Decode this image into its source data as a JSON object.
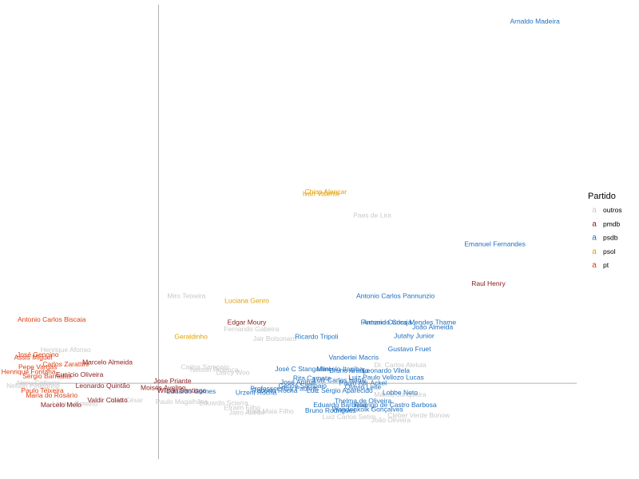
{
  "chart_data": {
    "type": "scatter",
    "title": "",
    "xlabel": "",
    "ylabel": "",
    "xlim": [
      -1.5,
      4.5
    ],
    "ylim": [
      -0.8,
      4.0
    ],
    "grid": false,
    "legend_position": "right",
    "legend": {
      "title": "Partido",
      "entries": [
        {
          "key": "a",
          "label": "outros",
          "color": "#c8c8c8"
        },
        {
          "key": "a",
          "label": "pmdb",
          "color": "#8b1a1a"
        },
        {
          "key": "a",
          "label": "psdb",
          "color": "#1f6fbf"
        },
        {
          "key": "a",
          "label": "psol",
          "color": "#e0a000"
        },
        {
          "key": "a",
          "label": "pt",
          "color": "#e03c10"
        }
      ]
    },
    "series": [
      {
        "party": "psdb",
        "points": [
          {
            "x": 4.05,
            "y": 3.8,
            "label": "Arnaldo Madeira"
          },
          {
            "x": 3.62,
            "y": 1.45,
            "label": "Emanuel Fernandes"
          },
          {
            "x": 2.55,
            "y": 0.9,
            "label": "Antonio Carlos Pannunzio"
          },
          {
            "x": 2.7,
            "y": 0.62,
            "label": "Antonio Carlos Mendes Thame"
          },
          {
            "x": 2.45,
            "y": 0.62,
            "label": "Fernando Coruja"
          },
          {
            "x": 2.95,
            "y": 0.57,
            "label": "João Almeida"
          },
          {
            "x": 2.75,
            "y": 0.48,
            "label": "Jutahy Junior"
          },
          {
            "x": 1.7,
            "y": 0.47,
            "label": "Ricardo Tripoli"
          },
          {
            "x": 2.7,
            "y": 0.34,
            "label": "Gustavo Fruet"
          },
          {
            "x": 2.1,
            "y": 0.25,
            "label": "Vanderlei Macris"
          },
          {
            "x": 1.55,
            "y": 0.13,
            "label": "José C Stangarlini"
          },
          {
            "x": 1.95,
            "y": 0.13,
            "label": "Marcelo Itagiba"
          },
          {
            "x": 2.05,
            "y": 0.11,
            "label": "Bruno Araújo"
          },
          {
            "x": 2.45,
            "y": 0.11,
            "label": "Leonardo Vilela"
          },
          {
            "x": 1.65,
            "y": 0.03,
            "label": "Rita Camata"
          },
          {
            "x": 1.95,
            "y": 0.01,
            "label": "Luiz Carlos Hauly"
          },
          {
            "x": 2.45,
            "y": 0.04,
            "label": "Luiz Paulo Vellozo Lucas"
          },
          {
            "x": 1.5,
            "y": -0.01,
            "label": "José Aníbal"
          },
          {
            "x": 2.2,
            "y": -0.02,
            "label": "Paulo Abi-Ackel"
          },
          {
            "x": 1.55,
            "y": -0.05,
            "label": "Carlos Sampaio"
          },
          {
            "x": 2.2,
            "y": -0.06,
            "label": "Otavio Leite"
          },
          {
            "x": 1.35,
            "y": -0.08,
            "label": "Professor Ruy Pauletti"
          },
          {
            "x": 1.95,
            "y": -0.1,
            "label": "Luiz Sérgio Aparecido"
          },
          {
            "x": 2.6,
            "y": -0.12,
            "label": "Lobbe Neto"
          },
          {
            "x": 1.25,
            "y": -0.1,
            "label": "Roberto Rocha"
          },
          {
            "x": 1.05,
            "y": -0.12,
            "label": "Urzeni Rocha"
          },
          {
            "x": 2.2,
            "y": -0.21,
            "label": "Thelma de Oliveira"
          },
          {
            "x": 2.55,
            "y": -0.25,
            "label": "Rodrigo de Castro Barbosa"
          },
          {
            "x": 1.95,
            "y": -0.25,
            "label": "Eduardo Barbosa"
          },
          {
            "x": 2.25,
            "y": -0.3,
            "label": "Wandenkolk Gonçalves"
          },
          {
            "x": 1.85,
            "y": -0.31,
            "label": "Bruno Rodrigues"
          },
          {
            "x": 0.35,
            "y": -0.11,
            "label": "Eduardo Gomes"
          }
        ]
      },
      {
        "party": "pmdb",
        "points": [
          {
            "x": 3.55,
            "y": 1.03,
            "label": "Raul Henry"
          },
          {
            "x": 0.95,
            "y": 0.62,
            "label": "Edgar Moury"
          },
          {
            "x": -0.55,
            "y": 0.2,
            "label": "Marcelo Almeida"
          },
          {
            "x": 0.25,
            "y": -0.1,
            "label": "Wilson Santiago"
          },
          {
            "x": -0.55,
            "y": -0.2,
            "label": "Valdir Colatto"
          },
          {
            "x": -1.05,
            "y": -0.25,
            "label": "Marcelo Melo"
          },
          {
            "x": -0.6,
            "y": -0.05,
            "label": "Leonardo Quintão"
          },
          {
            "x": 0.05,
            "y": -0.07,
            "label": "Moisés Avelino"
          },
          {
            "x": -0.85,
            "y": 0.07,
            "label": "Eunício Oliveira"
          },
          {
            "x": 0.15,
            "y": 0.0,
            "label": "Jose Priante"
          }
        ]
      },
      {
        "party": "psol",
        "points": [
          {
            "x": 1.8,
            "y": 2.0,
            "label": "Chico Alencar"
          },
          {
            "x": 1.75,
            "y": 1.98,
            "label": "Ivan Valente"
          },
          {
            "x": 0.95,
            "y": 0.85,
            "label": "Luciana Genro"
          },
          {
            "x": 0.35,
            "y": 0.47,
            "label": "Geraldinho"
          }
        ]
      },
      {
        "party": "pt",
        "points": [
          {
            "x": -1.15,
            "y": 0.65,
            "label": "Antonio Carlos Biscaia"
          },
          {
            "x": -1.3,
            "y": 0.28,
            "label": "José Genoino"
          },
          {
            "x": -1.35,
            "y": 0.25,
            "label": "Assis Miguel"
          },
          {
            "x": -1.3,
            "y": 0.15,
            "label": "Pepe Vargas"
          },
          {
            "x": -1.4,
            "y": 0.1,
            "label": "Henrique Fontana"
          },
          {
            "x": -1.25,
            "y": -0.1,
            "label": "Paulo Teixeira"
          },
          {
            "x": -1.15,
            "y": -0.15,
            "label": "Maria do Rosário"
          },
          {
            "x": -1.2,
            "y": 0.05,
            "label": "Sérgio Barradas"
          },
          {
            "x": -1.0,
            "y": 0.18,
            "label": "Carlos Zarattini"
          }
        ]
      },
      {
        "party": "outros",
        "points": [
          {
            "x": 2.3,
            "y": 1.75,
            "label": "Paes de Lira"
          },
          {
            "x": 0.3,
            "y": 0.9,
            "label": "Miro Teixeira"
          },
          {
            "x": 1.0,
            "y": 0.55,
            "label": "Fernando Gabeira"
          },
          {
            "x": 1.25,
            "y": 0.45,
            "label": "Jair Bolsonaro"
          },
          {
            "x": 2.6,
            "y": 0.17,
            "label": "Dr. Carlos Aleluia"
          },
          {
            "x": -1.0,
            "y": 0.33,
            "label": "Henrique Afonso"
          },
          {
            "x": 0.6,
            "y": 0.12,
            "label": "Nelson Proença"
          },
          {
            "x": 0.8,
            "y": 0.09,
            "label": "Darcy Woo"
          },
          {
            "x": 0.7,
            "y": -0.23,
            "label": "Eduardo Sciarra"
          },
          {
            "x": 0.95,
            "y": -0.33,
            "label": "Jairo Ataíde"
          },
          {
            "x": 0.25,
            "y": -0.22,
            "label": "Paulo Magalhães"
          },
          {
            "x": -0.9,
            "y": -0.24,
            "label": "Lázaro Botelho"
          },
          {
            "x": -0.35,
            "y": -0.2,
            "label": "Júlio César"
          },
          {
            "x": 0.9,
            "y": -0.28,
            "label": "Efraim Filho"
          },
          {
            "x": 2.8,
            "y": -0.36,
            "label": "Cleber Verde Bonow"
          },
          {
            "x": 2.5,
            "y": -0.41,
            "label": "João Oliveira"
          },
          {
            "x": 2.05,
            "y": -0.38,
            "label": "Luiz Carlos Setim"
          },
          {
            "x": 1.2,
            "y": -0.32,
            "label": "José Maia Filho"
          },
          {
            "x": 2.6,
            "y": -0.14,
            "label": "Márcio Junqueira"
          },
          {
            "x": 0.5,
            "y": 0.15,
            "label": "Carlos Sampaio"
          },
          {
            "x": -1.35,
            "y": -0.05,
            "label": "Nelson Pellegrino"
          },
          {
            "x": -1.3,
            "y": -0.02,
            "label": "Alceu Collares"
          }
        ]
      }
    ]
  }
}
